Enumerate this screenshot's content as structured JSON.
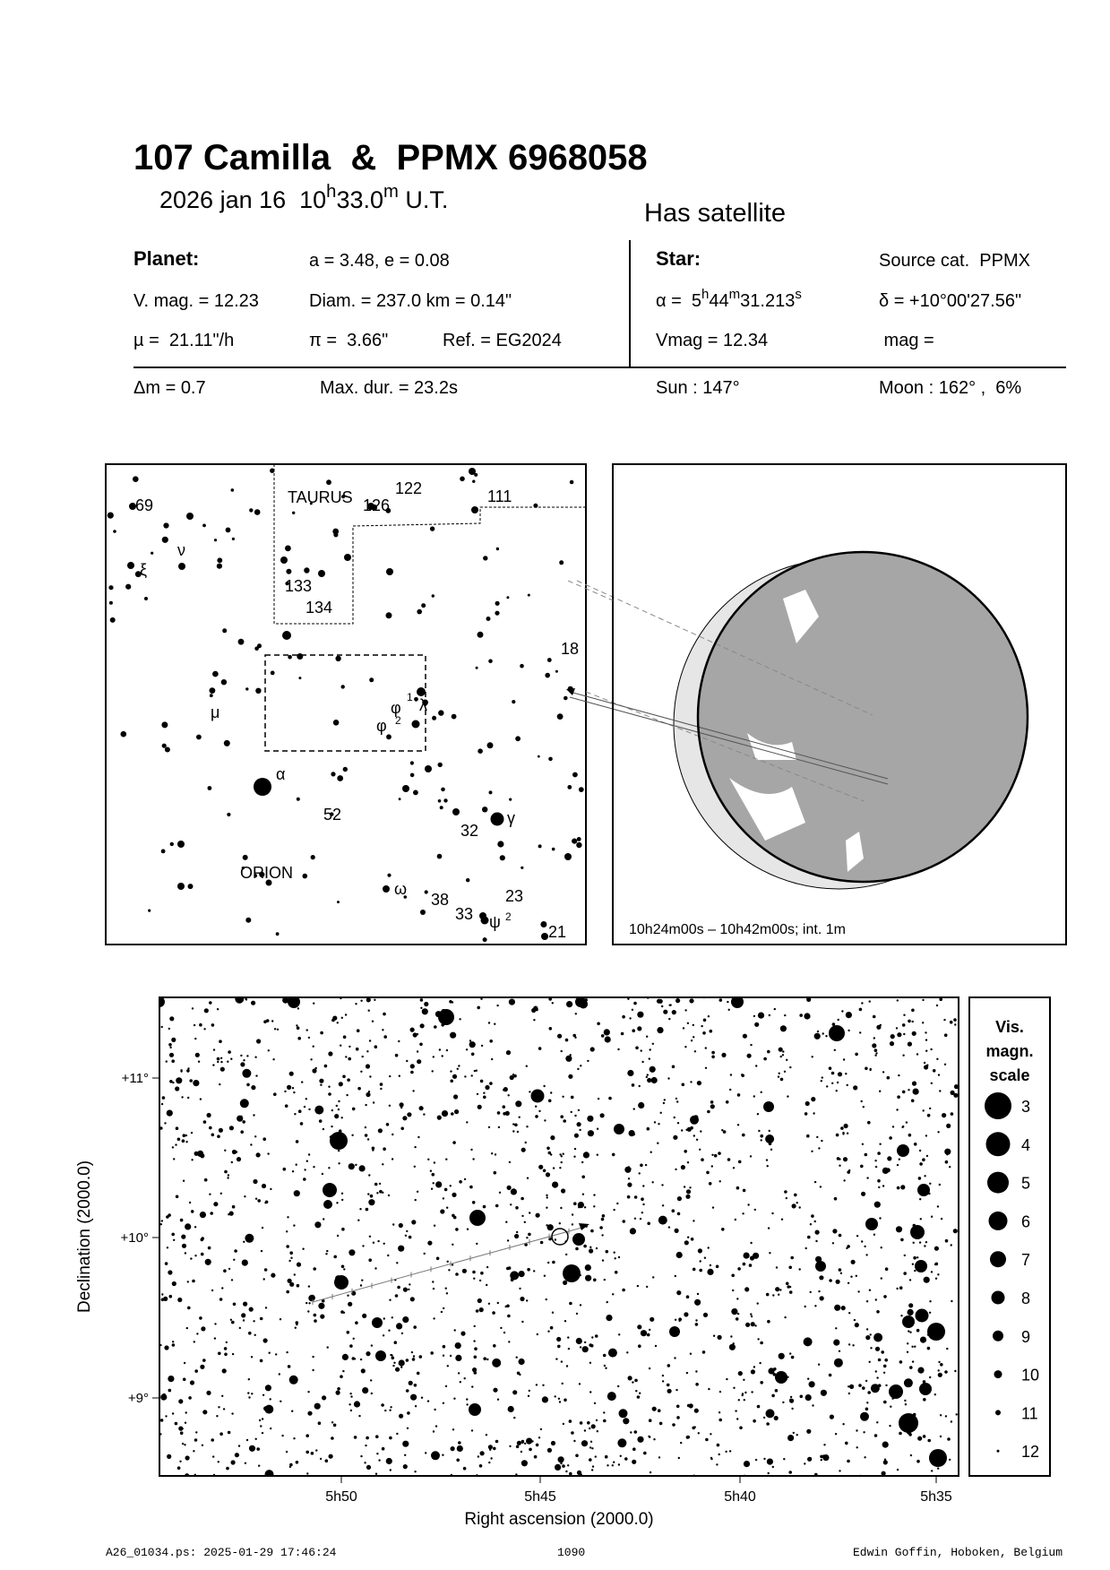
{
  "header": {
    "title": "107 Camilla  &  PPMX 6968058",
    "date": {
      "day": "2026 jan 16  10",
      "h": "h",
      "min": "33.0",
      "m": "m",
      "tz": " U.T."
    },
    "satellite_note": "Has satellite"
  },
  "planet": {
    "label": "Planet:",
    "orbit": "a = 3.48, e = 0.08",
    "vmag": "V. mag. = 12.23",
    "diameter": "Diam. = 237.0 km = 0.14\"",
    "motion": "µ =  21.11\"/h",
    "parallax": "π =  3.66\"",
    "reference": "Ref. = EG2024"
  },
  "star": {
    "label": "Star:",
    "source": "Source cat.  PPMX",
    "ra": {
      "a": "α =  5",
      "h": "h",
      "b": "44",
      "m": "m",
      "c": "31.213",
      "s": "s"
    },
    "dec": "δ = +10°00'27.56\"",
    "vmag": "Vmag = 12.34",
    "mag": " mag ="
  },
  "event": {
    "delta_mag": "Δm = 0.7",
    "max_duration": "Max. dur. = 23.2s",
    "sun": "Sun : 147°",
    "moon": "Moon : 162° ,  6%"
  },
  "finder_chart": {
    "labels": [
      "69",
      "ν",
      "ξ",
      "TAURUS",
      "126",
      "122",
      "111",
      "133",
      "134",
      "18",
      "μ",
      "φ",
      "1",
      "λ",
      "φ",
      "2",
      "α",
      "52",
      "γ",
      "32",
      "ORION",
      "ω",
      "38",
      "23",
      "33",
      "ψ",
      "2",
      "21"
    ]
  },
  "globe": {
    "time_range": "10h24m00s – 10h42m00s; int.  1m",
    "land_color": "#a6a6a6",
    "night_color": "#e6e6e6"
  },
  "chart_data": {
    "type": "scatter",
    "xlabel": "Right ascension (2000.0)",
    "ylabel": "Declination (2000.0)",
    "x_ticks": [
      "5h50",
      "5h45",
      "5h40",
      "5h35"
    ],
    "y_ticks": [
      "+11°",
      "+10°",
      "+9°"
    ],
    "legend": {
      "title": [
        "Vis.",
        "magn.",
        "scale"
      ],
      "magnitudes": [
        "3",
        "4",
        "5",
        "6",
        "7",
        "8",
        "9",
        "10",
        "11",
        "12"
      ],
      "placement": "right"
    }
  },
  "footer": {
    "file": "A26_01034.ps: 2025-01-29 17:46:24",
    "page": "1090",
    "author": "Edwin Goffin, Hoboken, Belgium"
  }
}
